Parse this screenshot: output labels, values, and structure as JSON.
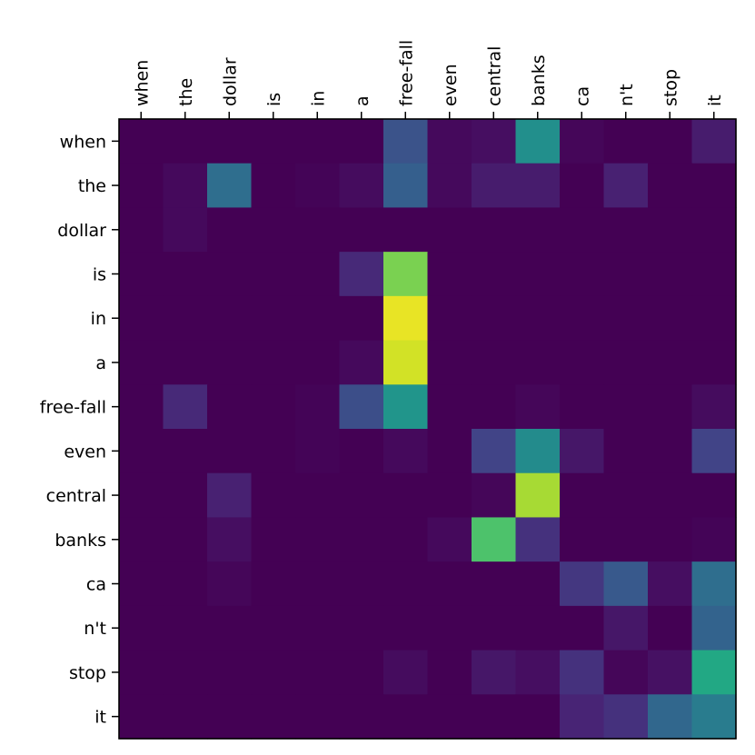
{
  "chart_data": {
    "type": "heatmap",
    "x_tokens": [
      "when",
      "the",
      "dollar",
      "is",
      "in",
      "a",
      "free-fall",
      "even",
      "central",
      "banks",
      "ca",
      "n't",
      "stop",
      "it"
    ],
    "y_tokens": [
      "when",
      "the",
      "dollar",
      "is",
      "in",
      "a",
      "free-fall",
      "even",
      "central",
      "banks",
      "ca",
      "n't",
      "stop",
      "it"
    ],
    "colormap": "viridis",
    "value_range": [
      0,
      1
    ],
    "x_axis_position": "top",
    "x_label_rotation": "vertical",
    "grid": false,
    "values": [
      [
        0.0,
        0.0,
        0.0,
        0.0,
        0.0,
        0.0,
        0.32,
        0.03,
        0.05,
        0.62,
        0.02,
        0.0,
        0.0,
        0.1
      ],
      [
        0.0,
        0.03,
        0.45,
        0.0,
        0.01,
        0.04,
        0.38,
        0.03,
        0.1,
        0.1,
        0.0,
        0.12,
        0.0,
        0.0
      ],
      [
        0.0,
        0.03,
        0.0,
        0.0,
        0.0,
        0.0,
        0.0,
        0.0,
        0.0,
        0.0,
        0.0,
        0.0,
        0.0,
        0.0
      ],
      [
        0.0,
        0.0,
        0.0,
        0.0,
        0.0,
        0.15,
        0.88,
        0.0,
        0.0,
        0.0,
        0.0,
        0.0,
        0.0,
        0.0
      ],
      [
        0.0,
        0.0,
        0.0,
        0.0,
        0.0,
        0.0,
        0.98,
        0.0,
        0.0,
        0.0,
        0.0,
        0.0,
        0.0,
        0.0
      ],
      [
        0.0,
        0.0,
        0.0,
        0.0,
        0.0,
        0.03,
        0.96,
        0.0,
        0.0,
        0.0,
        0.0,
        0.0,
        0.0,
        0.0
      ],
      [
        0.0,
        0.15,
        0.0,
        0.0,
        0.01,
        0.3,
        0.65,
        0.0,
        0.0,
        0.02,
        0.0,
        0.0,
        0.0,
        0.04
      ],
      [
        0.0,
        0.0,
        0.0,
        0.0,
        0.01,
        0.0,
        0.03,
        0.0,
        0.25,
        0.6,
        0.08,
        0.0,
        0.0,
        0.25
      ],
      [
        0.0,
        0.0,
        0.12,
        0.0,
        0.0,
        0.0,
        0.0,
        0.0,
        0.02,
        0.92,
        0.0,
        0.0,
        0.0,
        0.0
      ],
      [
        0.0,
        0.0,
        0.05,
        0.0,
        0.0,
        0.0,
        0.0,
        0.03,
        0.83,
        0.18,
        0.0,
        0.0,
        0.0,
        0.01
      ],
      [
        0.0,
        0.0,
        0.02,
        0.0,
        0.0,
        0.0,
        0.0,
        0.0,
        0.0,
        0.0,
        0.2,
        0.35,
        0.05,
        0.45
      ],
      [
        0.0,
        0.0,
        0.0,
        0.0,
        0.0,
        0.0,
        0.0,
        0.0,
        0.0,
        0.0,
        0.0,
        0.08,
        0.0,
        0.4
      ],
      [
        0.0,
        0.0,
        0.0,
        0.0,
        0.0,
        0.0,
        0.04,
        0.0,
        0.08,
        0.05,
        0.18,
        0.02,
        0.06,
        0.75
      ],
      [
        0.0,
        0.0,
        0.0,
        0.0,
        0.0,
        0.0,
        0.0,
        0.0,
        0.0,
        0.0,
        0.13,
        0.18,
        0.42,
        0.52
      ]
    ]
  }
}
